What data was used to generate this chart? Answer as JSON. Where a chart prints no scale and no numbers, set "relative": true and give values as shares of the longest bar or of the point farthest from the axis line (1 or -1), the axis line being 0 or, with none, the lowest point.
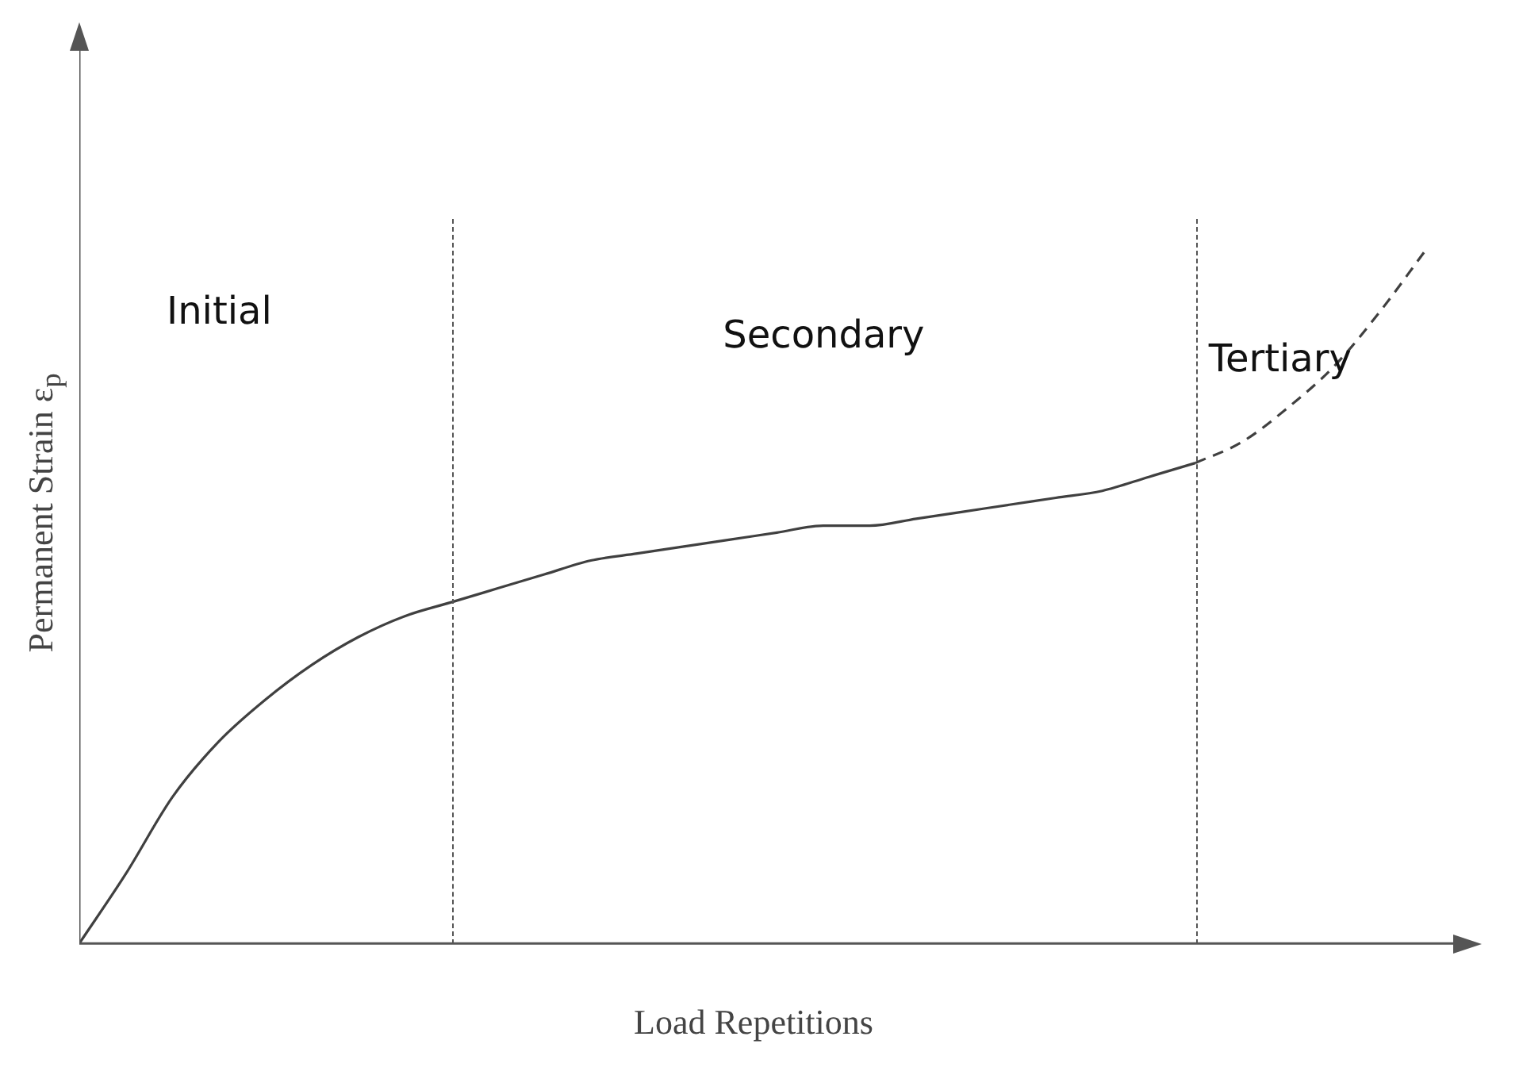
{
  "chart_data": {
    "type": "line",
    "relative": true,
    "xlabel": "Load Repetitions",
    "ylabel": "Permanent Strain ε$_{p}$",
    "marker": "none",
    "categories": [
      null,
      null,
      null,
      null,
      null,
      null,
      null,
      null,
      null,
      null,
      null,
      null,
      null,
      null,
      null,
      null,
      null,
      null,
      null,
      null,
      null,
      null,
      null,
      null,
      null,
      null,
      null,
      null,
      null,
      null
    ],
    "series": [
      {
        "color": "#404040",
        "line_style": "solid",
        "values": [
          0,
          0.1,
          0.21,
          0.29,
          0.35,
          0.4,
          0.44,
          0.47,
          0.49,
          0.51,
          0.53,
          0.55,
          0.56,
          0.57,
          0.58,
          0.59,
          0.6,
          0.6,
          0.61,
          0.62,
          0.63,
          0.64,
          0.65,
          0.67,
          0.69,
          null,
          null,
          null,
          null,
          null
        ]
      },
      {
        "color": "#404040",
        "line_style": "dashed",
        "values": [
          null,
          null,
          null,
          null,
          null,
          null,
          null,
          null,
          null,
          null,
          null,
          null,
          null,
          null,
          null,
          null,
          null,
          null,
          null,
          null,
          null,
          null,
          null,
          null,
          0.69,
          0.72,
          0.77,
          0.83,
          0.91,
          1
        ]
      }
    ],
    "annotations": [
      "Initial",
      "Secondary",
      "Tertiary"
    ]
  }
}
